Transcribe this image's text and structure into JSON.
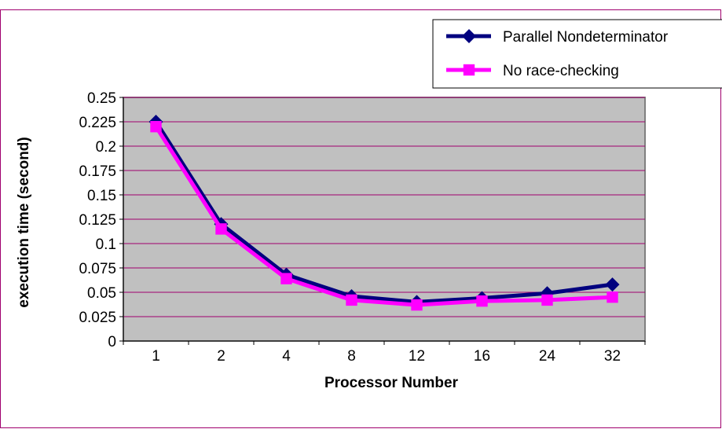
{
  "chart_data": {
    "type": "line",
    "title": "",
    "xlabel": "Processor Number",
    "ylabel": "execution time  (second)",
    "categories": [
      "1",
      "2",
      "4",
      "8",
      "12",
      "16",
      "24",
      "32"
    ],
    "ylim": [
      0,
      0.25
    ],
    "yticks": [
      "0",
      "0.025",
      "0.05",
      "0.075",
      "0.1",
      "0.125",
      "0.15",
      "0.175",
      "0.2",
      "0.225",
      "0.25"
    ],
    "grid": "horizontal",
    "legend_position": "top-right",
    "series": [
      {
        "name": "Parallel Nondeterminator",
        "marker": "diamond",
        "color": "#00007F",
        "values": [
          0.225,
          0.12,
          0.068,
          0.046,
          0.04,
          0.044,
          0.049,
          0.058
        ]
      },
      {
        "name": "No race-checking",
        "marker": "square",
        "color": "#FF00FF",
        "values": [
          0.22,
          0.115,
          0.064,
          0.042,
          0.037,
          0.041,
          0.042,
          0.045
        ]
      }
    ]
  },
  "colors": {
    "plot_background": "#C0C0C0",
    "gridline": "#A0006E",
    "frame_border": "#A0006E"
  }
}
